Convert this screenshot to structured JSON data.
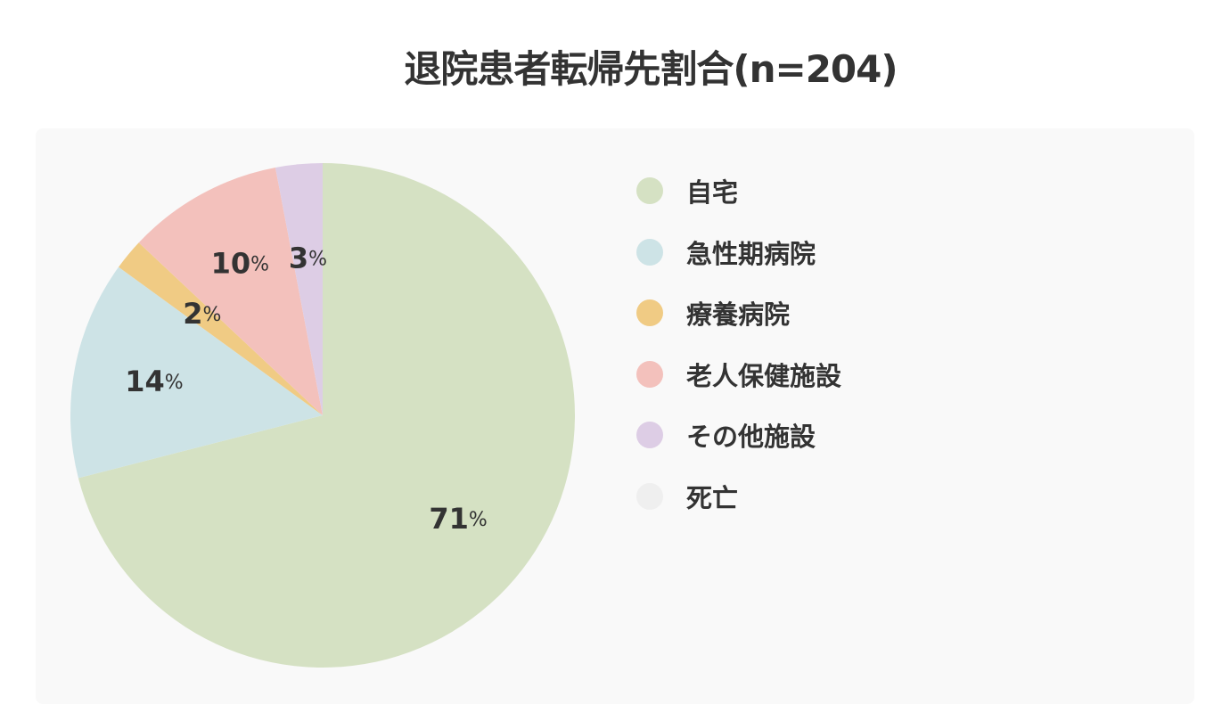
{
  "title": "退院患者転帰先割合(n=204)",
  "chart_data": {
    "type": "pie",
    "title": "退院患者転帰先割合(n=204)",
    "legend_position": "right",
    "slices": [
      {
        "label": "自宅",
        "value": 71,
        "display": "71",
        "unit": "%",
        "color": "#d5e1c3"
      },
      {
        "label": "急性期病院",
        "value": 14,
        "display": "14",
        "unit": "%",
        "color": "#cde3e6"
      },
      {
        "label": "療養病院",
        "value": 2,
        "display": "2",
        "unit": "%",
        "color": "#f0cb84"
      },
      {
        "label": "老人保健施設",
        "value": 10,
        "display": "10",
        "unit": "%",
        "color": "#f3c1bc"
      },
      {
        "label": "その他施設",
        "value": 3,
        "display": "3",
        "unit": "%",
        "color": "#ddcde5"
      },
      {
        "label": "死亡",
        "value": 0,
        "display": "",
        "unit": "",
        "color": "#efefef"
      }
    ]
  }
}
